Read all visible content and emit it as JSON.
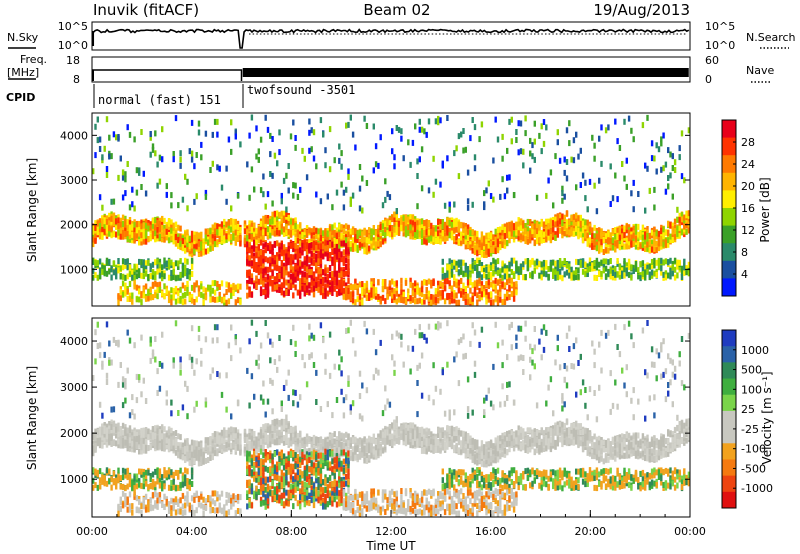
{
  "header": {
    "station": "Inuvik (fitACF)",
    "beam": "Beam 02",
    "date": "19/Aug/2013"
  },
  "left_labels": {
    "nsky": "N.Sky",
    "freq_line1": "Freq.",
    "freq_line2": "[MHz]",
    "cpid": "CPID"
  },
  "right_labels": {
    "nsearch": "N.Search",
    "nave": "Nave"
  },
  "cpid_segments": [
    {
      "label": "normal (fast) 151",
      "start": "00:00",
      "end": "06:00"
    },
    {
      "label": "twofsound -3501",
      "start": "06:00",
      "end": "24:00"
    }
  ],
  "chart_data": [
    {
      "type": "line",
      "name": "noise",
      "y_left_ticks": [
        "10^5",
        "10^0"
      ],
      "y_right_ticks": [
        "10^5",
        "10^0"
      ]
    },
    {
      "type": "line",
      "name": "frequency",
      "y_left_ticks": [
        "18",
        "8"
      ],
      "y_right_ticks": [
        "60",
        "0"
      ]
    },
    {
      "type": "heatmap",
      "name": "power",
      "ylabel": "Slant Range [km]",
      "ylim": [
        180,
        4500
      ],
      "y_ticks": [
        1000,
        2000,
        3000,
        4000
      ],
      "colorbar_label": "Power [dB]",
      "colorbar_ticks": [
        "28",
        "24",
        "20",
        "16",
        "12",
        "8",
        "4"
      ],
      "colorbar_colors": [
        "#e8001a",
        "#ff3300",
        "#ff7a00",
        "#ffb400",
        "#ffee00",
        "#8fd400",
        "#3aa028",
        "#2a8a6a",
        "#1a4fa0",
        "#0018ff"
      ]
    },
    {
      "type": "heatmap",
      "name": "velocity",
      "ylabel": "Slant Range [km]",
      "ylim": [
        180,
        4500
      ],
      "y_ticks": [
        1000,
        2000,
        3000,
        4000
      ],
      "colorbar_label": "Velocity [m s⁻¹]",
      "colorbar_ticks": [
        "1000",
        "500",
        "100",
        "25",
        "-25",
        "-100",
        "-500",
        "-1000"
      ],
      "colorbar_colors": [
        "#1f3cc0",
        "#2a62a8",
        "#2f8a58",
        "#3fae3f",
        "#7ad44a",
        "#c8c8c0",
        "#c8c8c0",
        "#f2a21e",
        "#f57a10",
        "#ee4410",
        "#e01010"
      ]
    }
  ],
  "x_axis": {
    "label": "Time UT",
    "ticks": [
      "00:00",
      "04:00",
      "08:00",
      "12:00",
      "16:00",
      "20:00",
      "00:00"
    ]
  }
}
